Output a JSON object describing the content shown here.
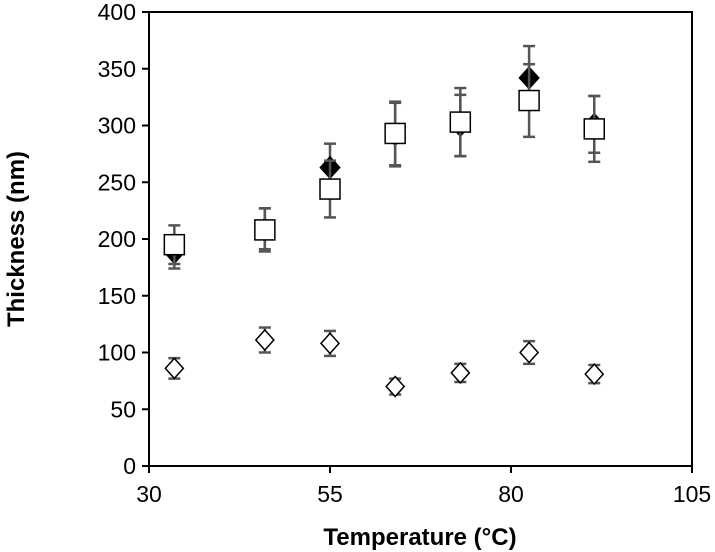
{
  "chart_data": {
    "type": "scatter",
    "title": "",
    "xlabel": "Temperature (°C)",
    "ylabel": "Thickness (nm)",
    "xlim": [
      30,
      105
    ],
    "ylim": [
      0,
      400
    ],
    "x_ticks": [
      30,
      55,
      80,
      105
    ],
    "y_ticks": [
      0,
      50,
      100,
      150,
      200,
      250,
      300,
      350,
      400
    ],
    "grid": false,
    "legend": "none",
    "series": [
      {
        "marker": "diamond-filled",
        "color": "#000000",
        "points": [
          {
            "x": 33.5,
            "y": 188,
            "err": 14
          },
          {
            "x": 46,
            "y": 209,
            "err": 18
          },
          {
            "x": 55,
            "y": 263,
            "err": 21
          },
          {
            "x": 64,
            "y": 292,
            "err": 28
          },
          {
            "x": 73,
            "y": 300,
            "err": 27
          },
          {
            "x": 82.5,
            "y": 342,
            "err": 28
          },
          {
            "x": 91.5,
            "y": 301,
            "err": 25
          }
        ]
      },
      {
        "marker": "square-open",
        "color": "#000000",
        "points": [
          {
            "x": 33.5,
            "y": 195,
            "err": 17
          },
          {
            "x": 46,
            "y": 208,
            "err": 19
          },
          {
            "x": 55,
            "y": 244,
            "err": 25
          },
          {
            "x": 64,
            "y": 293,
            "err": 28
          },
          {
            "x": 73,
            "y": 303,
            "err": 30
          },
          {
            "x": 82.5,
            "y": 322,
            "err": 32
          },
          {
            "x": 91.5,
            "y": 297,
            "err": 29
          }
        ]
      },
      {
        "marker": "diamond-open",
        "color": "#000000",
        "points": [
          {
            "x": 33.5,
            "y": 86,
            "err": 9
          },
          {
            "x": 46,
            "y": 111,
            "err": 11
          },
          {
            "x": 55,
            "y": 108,
            "err": 11
          },
          {
            "x": 64,
            "y": 70,
            "err": 7
          },
          {
            "x": 73,
            "y": 82,
            "err": 8
          },
          {
            "x": 82.5,
            "y": 100,
            "err": 10
          },
          {
            "x": 91.5,
            "y": 81,
            "err": 8
          }
        ]
      }
    ]
  }
}
